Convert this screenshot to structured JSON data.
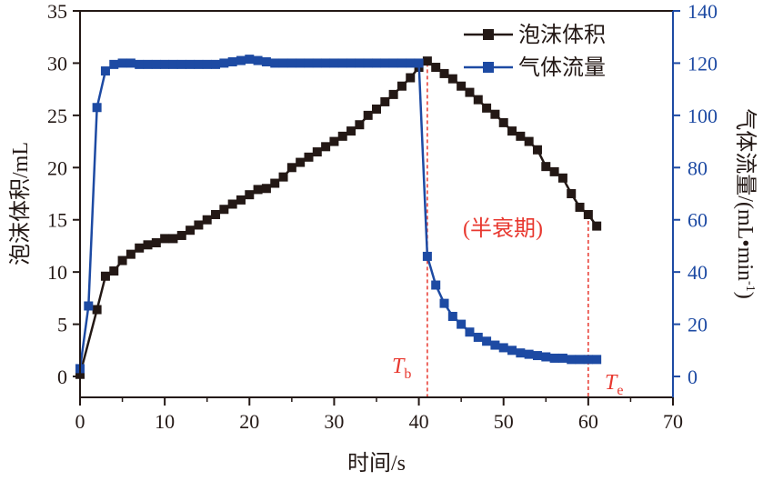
{
  "chart_data": {
    "type": "line",
    "xlabel": "时间/s",
    "ylabel_left": "泡沫体积/mL",
    "ylabel_right": "气体流量/(mL•min",
    "ylabel_right_sup": "-1",
    "ylabel_right_close": ")",
    "xlim": [
      0,
      70
    ],
    "ylim_left": [
      -2,
      35
    ],
    "ylim_right": [
      -8,
      140
    ],
    "x_ticks": [
      0,
      10,
      20,
      30,
      40,
      50,
      60,
      70
    ],
    "y_left_ticks": [
      0,
      5,
      10,
      15,
      20,
      25,
      30,
      35
    ],
    "y_right_ticks": [
      0,
      20,
      40,
      60,
      80,
      100,
      120,
      140
    ],
    "legend": {
      "position": "top-right"
    },
    "series": [
      {
        "name": "泡沫体积",
        "axis": "left",
        "color": "#231815",
        "x": [
          0,
          2,
          3,
          4,
          5,
          6,
          7,
          8,
          9,
          10,
          11,
          12,
          13,
          14,
          15,
          16,
          17,
          18,
          19,
          20,
          21,
          22,
          23,
          24,
          25,
          26,
          27,
          28,
          29,
          30,
          31,
          32,
          33,
          34,
          35,
          36,
          37,
          38,
          39,
          40,
          41,
          42,
          43,
          44,
          45,
          46,
          47,
          48,
          49,
          50,
          51,
          52,
          53,
          54,
          55,
          56,
          57,
          58,
          59,
          60,
          61
        ],
        "y": [
          0.2,
          6.4,
          9.6,
          10.1,
          11.1,
          11.7,
          12.3,
          12.6,
          12.8,
          13.2,
          13.2,
          13.5,
          14.0,
          14.5,
          15.0,
          15.5,
          16.0,
          16.5,
          16.9,
          17.4,
          17.9,
          18.0,
          18.5,
          19.1,
          20.0,
          20.5,
          21.0,
          21.5,
          22.0,
          22.5,
          23.0,
          23.5,
          24.1,
          25.0,
          25.6,
          26.3,
          27.0,
          27.8,
          28.6,
          29.6,
          30.2,
          29.6,
          29.0,
          28.5,
          27.8,
          27.2,
          26.5,
          25.7,
          25.1,
          24.3,
          23.5,
          23.0,
          22.5,
          21.7,
          20.1,
          19.6,
          19.0,
          17.5,
          16.2,
          15.5,
          14.4
        ]
      },
      {
        "name": "气体流量",
        "axis": "right",
        "color": "#1d4aa3",
        "x": [
          0,
          1,
          2,
          3,
          4,
          5,
          6,
          7,
          8,
          9,
          10,
          11,
          12,
          13,
          14,
          15,
          16,
          17,
          18,
          19,
          20,
          21,
          22,
          23,
          24,
          25,
          26,
          27,
          28,
          29,
          30,
          31,
          32,
          33,
          34,
          35,
          36,
          37,
          38,
          39,
          40,
          41,
          42,
          43,
          44,
          45,
          46,
          47,
          48,
          49,
          50,
          51,
          52,
          53,
          54,
          55,
          56,
          57,
          58,
          59,
          60,
          61
        ],
        "y": [
          3,
          27,
          103,
          117,
          119.5,
          120,
          120,
          119.5,
          119.5,
          119.5,
          119.5,
          119.5,
          119.5,
          119.5,
          119.5,
          119.5,
          119.5,
          120,
          120.5,
          121,
          121.5,
          121,
          120.5,
          120,
          120,
          120,
          120,
          120,
          120,
          120,
          120,
          120,
          120,
          120,
          120,
          120,
          120,
          120,
          120,
          120,
          120,
          46,
          35,
          28,
          23,
          20,
          17,
          15,
          13.5,
          12,
          11,
          10,
          9,
          8.5,
          8,
          7.5,
          7,
          7,
          6.5,
          6.5,
          6.5,
          6.5
        ]
      }
    ],
    "annotations": {
      "half_life": "(半衰期)",
      "tb_main": "T",
      "tb_sub": "b",
      "te_main": "T",
      "te_sub": "e",
      "tb_x": 41,
      "te_x": 60,
      "line_color": "#e8382f"
    },
    "colors": {
      "left_axis": "#231815",
      "right_axis": "#1d4aa3",
      "annotation": "#e8382f"
    }
  }
}
